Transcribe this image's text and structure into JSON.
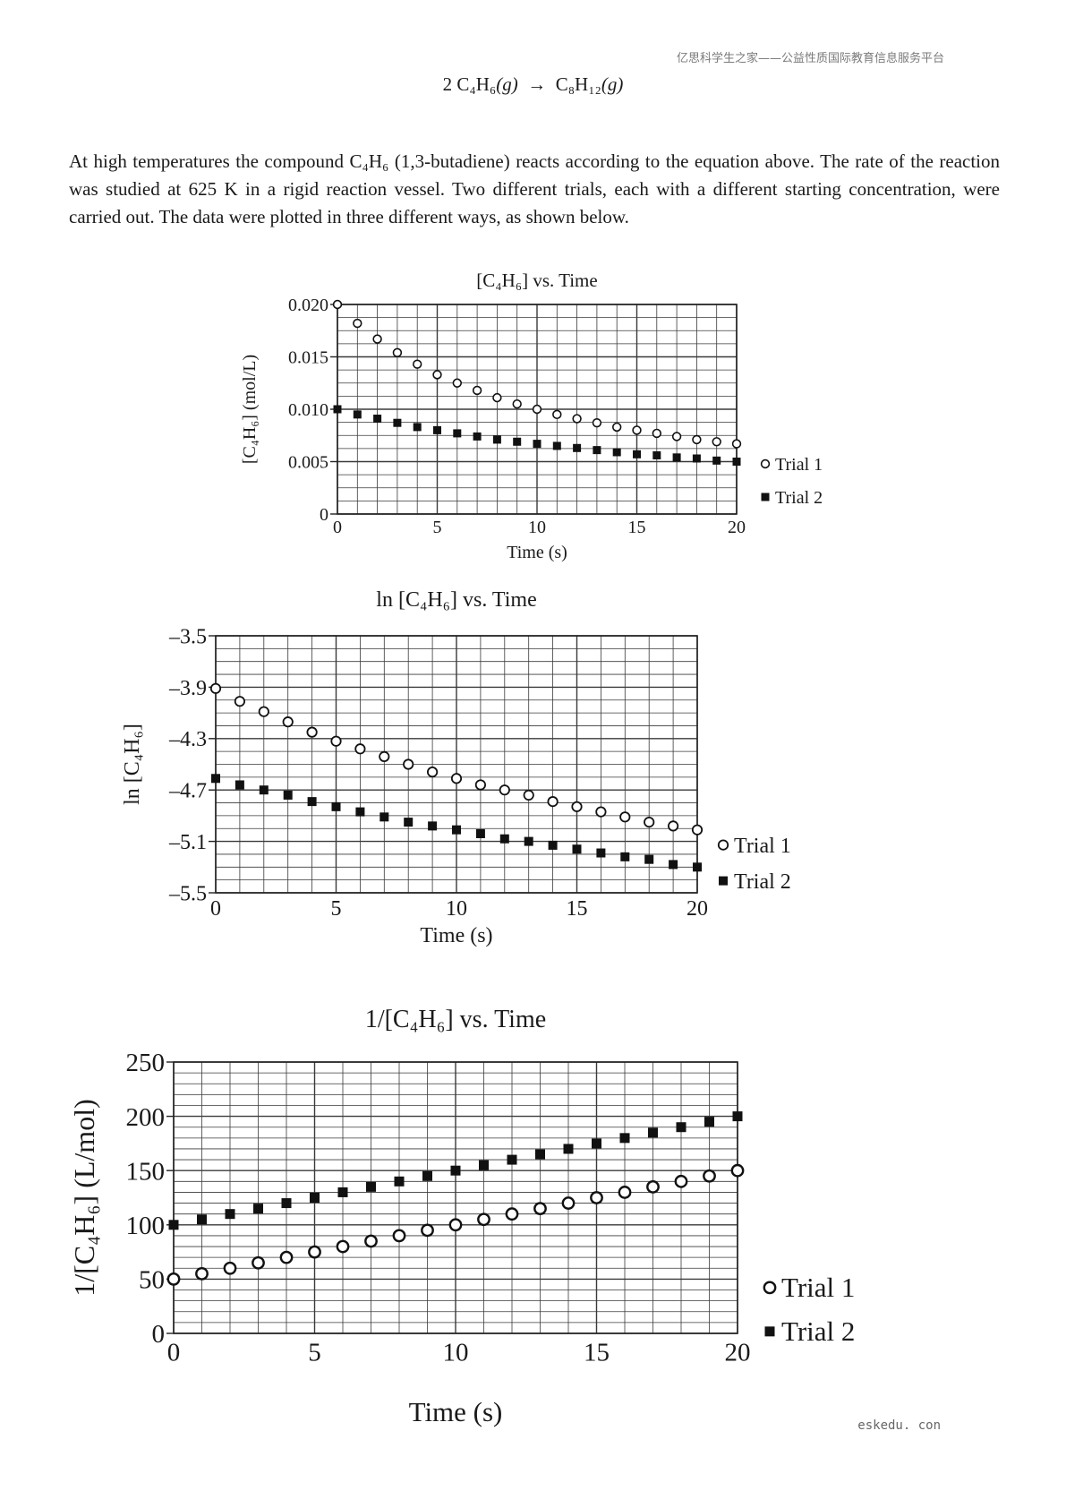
{
  "watermark": "亿思科学生之家——公益性质国际教育信息服务平台",
  "equation": {
    "lhs_coef": "2",
    "lhs_species": "C₄H₆",
    "lhs_phase": "(g)",
    "arrow": "→",
    "rhs_species": "C₈H₁₂",
    "rhs_phase": "(g)"
  },
  "intro": {
    "text_before_formula": "At high temperatures the compound ",
    "formula": "C₄H₆",
    "text_after_formula": " (1,3-butadiene) reacts according to the equation above. The rate of the reaction was studied at 625 K in a rigid reaction vessel. Two different trials, each with a different starting concentration, were carried out. The data were plotted in three different ways, as shown below."
  },
  "footer": "eskedu. con",
  "colors": {
    "text": "#1a1a1a",
    "grid": "#3a3a3a",
    "watermark": "#7a7a7a"
  },
  "chart_data": [
    {
      "type": "scatter",
      "title": "[C₄H₆] vs. Time",
      "xlabel": "Time (s)",
      "ylabel": "[C₄H₆] (mol/L)",
      "xlim": [
        0,
        20
      ],
      "ylim": [
        0,
        0.02
      ],
      "x_ticks": [
        "0",
        "5",
        "10",
        "15",
        "20"
      ],
      "y_ticks": [
        "0",
        "0.005",
        "0.010",
        "0.015",
        "0.020"
      ],
      "grid": true,
      "legend_position": "right-bottom",
      "x": [
        0,
        1,
        2,
        3,
        4,
        5,
        6,
        7,
        8,
        9,
        10,
        11,
        12,
        13,
        14,
        15,
        16,
        17,
        18,
        19,
        20
      ],
      "series": [
        {
          "name": "Trial 1",
          "marker": "open-circle",
          "values": [
            0.02,
            0.0182,
            0.0167,
            0.0154,
            0.0143,
            0.0133,
            0.0125,
            0.0118,
            0.0111,
            0.0105,
            0.01,
            0.0095,
            0.0091,
            0.0087,
            0.0083,
            0.008,
            0.0077,
            0.0074,
            0.0071,
            0.0069,
            0.0067
          ]
        },
        {
          "name": "Trial 2",
          "marker": "filled-square",
          "values": [
            0.01,
            0.0095,
            0.0091,
            0.0087,
            0.0083,
            0.008,
            0.0077,
            0.0074,
            0.0071,
            0.0069,
            0.0067,
            0.0065,
            0.0063,
            0.0061,
            0.0059,
            0.0057,
            0.0056,
            0.0054,
            0.0053,
            0.0051,
            0.005
          ]
        }
      ]
    },
    {
      "type": "scatter",
      "title": "ln [C₄H₆] vs. Time",
      "xlabel": "Time (s)",
      "ylabel": "ln [C₄H₆]",
      "xlim": [
        0,
        20
      ],
      "ylim": [
        -5.5,
        -3.5
      ],
      "x_ticks": [
        "0",
        "5",
        "10",
        "15",
        "20"
      ],
      "y_ticks": [
        "–5.5",
        "–5.1",
        "–4.7",
        "–4.3",
        "–3.9",
        "–3.5"
      ],
      "grid": true,
      "legend_position": "right-bottom",
      "x": [
        0,
        1,
        2,
        3,
        4,
        5,
        6,
        7,
        8,
        9,
        10,
        11,
        12,
        13,
        14,
        15,
        16,
        17,
        18,
        19,
        20
      ],
      "series": [
        {
          "name": "Trial 1",
          "marker": "open-circle",
          "values": [
            -3.91,
            -4.01,
            -4.09,
            -4.17,
            -4.25,
            -4.32,
            -4.38,
            -4.44,
            -4.5,
            -4.56,
            -4.61,
            -4.66,
            -4.7,
            -4.74,
            -4.79,
            -4.83,
            -4.87,
            -4.91,
            -4.95,
            -4.98,
            -5.01
          ]
        },
        {
          "name": "Trial 2",
          "marker": "filled-square",
          "values": [
            -4.61,
            -4.66,
            -4.7,
            -4.74,
            -4.79,
            -4.83,
            -4.87,
            -4.91,
            -4.95,
            -4.98,
            -5.01,
            -5.04,
            -5.08,
            -5.1,
            -5.13,
            -5.16,
            -5.19,
            -5.22,
            -5.24,
            -5.28,
            -5.3
          ]
        }
      ]
    },
    {
      "type": "scatter",
      "title": "1/[C₄H₆] vs. Time",
      "xlabel": "Time (s)",
      "ylabel": "1/[C₄H₆] (L/mol)",
      "xlim": [
        0,
        20
      ],
      "ylim": [
        0,
        250
      ],
      "x_ticks": [
        "0",
        "5",
        "10",
        "15",
        "20"
      ],
      "y_ticks": [
        "0",
        "50",
        "100",
        "150",
        "200",
        "250"
      ],
      "grid": true,
      "legend_position": "right-bottom",
      "x": [
        0,
        1,
        2,
        3,
        4,
        5,
        6,
        7,
        8,
        9,
        10,
        11,
        12,
        13,
        14,
        15,
        16,
        17,
        18,
        19,
        20
      ],
      "series": [
        {
          "name": "Trial 1",
          "marker": "open-circle",
          "values": [
            50,
            55,
            60,
            65,
            70,
            75,
            80,
            85,
            90,
            95,
            100,
            105,
            110,
            115,
            120,
            125,
            130,
            135,
            140,
            145,
            150
          ]
        },
        {
          "name": "Trial 2",
          "marker": "filled-square",
          "values": [
            100,
            105,
            110,
            115,
            120,
            125,
            130,
            135,
            140,
            145,
            150,
            155,
            160,
            165,
            170,
            175,
            180,
            185,
            190,
            195,
            200
          ]
        }
      ]
    }
  ]
}
